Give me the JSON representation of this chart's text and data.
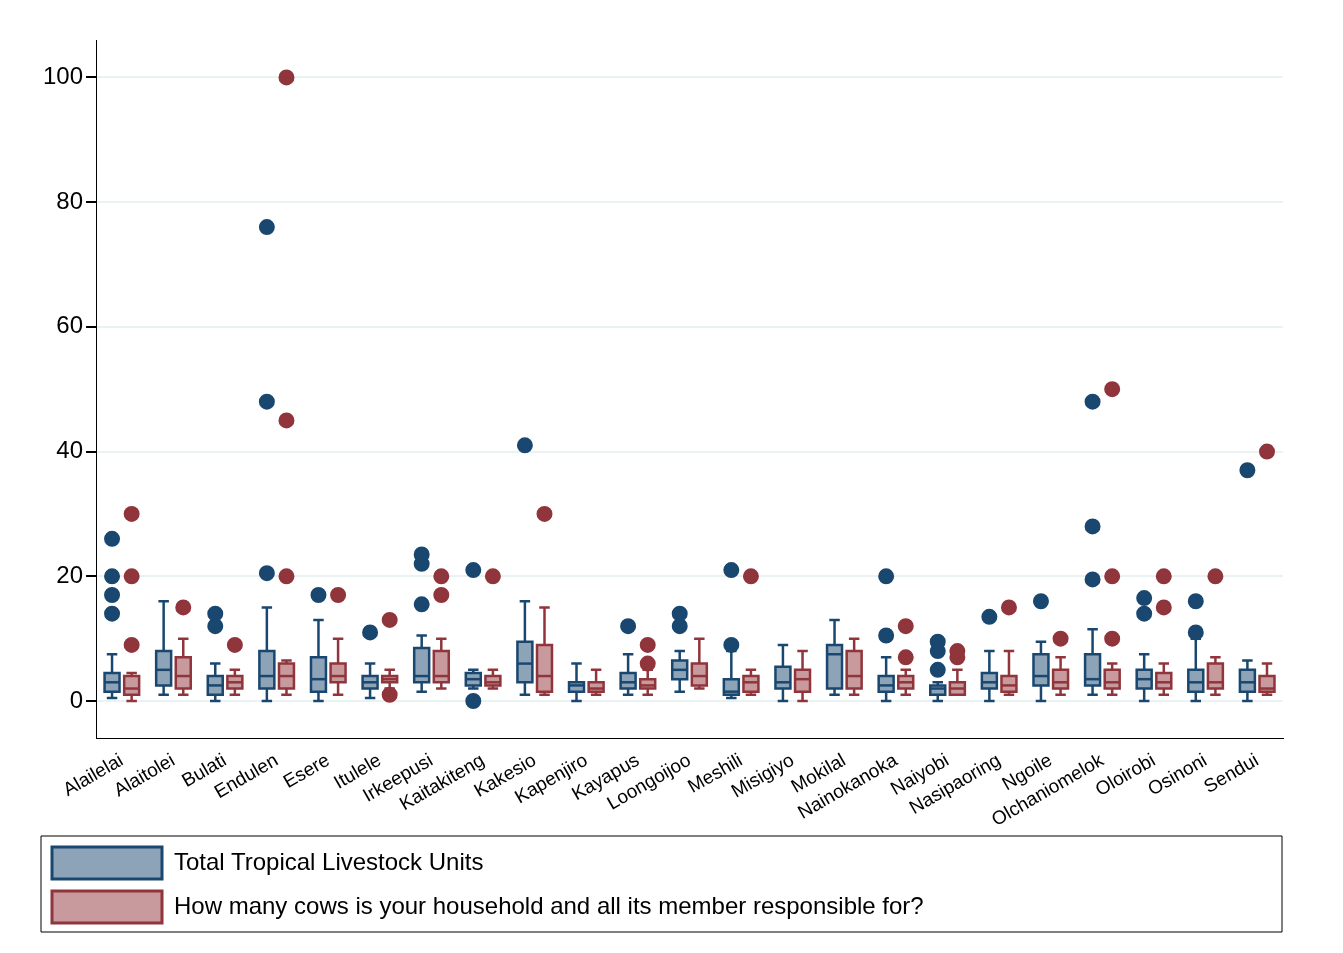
{
  "chart_data": {
    "type": "box",
    "categories": [
      "Alailelai",
      "Alaitolei",
      "Bulati",
      "Endulen",
      "Esere",
      "Itulele",
      "Irkeepusi",
      "Kaitakiteng",
      "Kakesio",
      "Kapenjiro",
      "Kayapus",
      "Loongoijoo",
      "Meshili",
      "Misigiyo",
      "Mokilal",
      "Nainokanoka",
      "Naiyobi",
      "Nasipaoring",
      "Ngoile",
      "Olchaniomelok",
      "Oloirobi",
      "Osinoni",
      "Sendui"
    ],
    "ylim": [
      -6,
      106
    ],
    "yticks": [
      0,
      20,
      40,
      60,
      80,
      100
    ],
    "grid": "y",
    "legend": "bottom",
    "marker": "circle",
    "series": [
      {
        "name": "Total Tropical Livestock Units",
        "color": "#1a476f",
        "boxes": [
          {
            "low": 0.5,
            "q1": 1.5,
            "median": 3,
            "q3": 4.5,
            "high": 7.5,
            "outliers": [
              14,
              17,
              20,
              26
            ]
          },
          {
            "low": 1,
            "q1": 2.5,
            "median": 5,
            "q3": 8,
            "high": 16
          },
          {
            "low": 0,
            "q1": 1,
            "median": 2.5,
            "q3": 4,
            "high": 6,
            "outliers": [
              12,
              14
            ]
          },
          {
            "low": 0,
            "q1": 2,
            "median": 4,
            "q3": 8,
            "high": 15,
            "outliers": [
              20.5,
              48,
              76
            ]
          },
          {
            "low": 0,
            "q1": 1.5,
            "median": 3.5,
            "q3": 7,
            "high": 13,
            "outliers": [
              17
            ]
          },
          {
            "low": 0.5,
            "q1": 2,
            "median": 3,
            "q3": 4,
            "high": 6,
            "outliers": [
              11
            ]
          },
          {
            "low": 1.5,
            "q1": 3,
            "median": 4,
            "q3": 8.5,
            "high": 10.5,
            "outliers": [
              15.5,
              22,
              23.5
            ]
          },
          {
            "low": 2,
            "q1": 2.5,
            "median": 3.5,
            "q3": 4.5,
            "high": 5,
            "outliers": [
              0,
              21
            ]
          },
          {
            "low": 1,
            "q1": 3,
            "median": 6,
            "q3": 9.5,
            "high": 16,
            "outliers": [
              41
            ]
          },
          {
            "low": 0,
            "q1": 1.5,
            "median": 2.5,
            "q3": 3,
            "high": 6
          },
          {
            "low": 1,
            "q1": 2,
            "median": 3,
            "q3": 4.5,
            "high": 7.5,
            "outliers": [
              12
            ]
          },
          {
            "low": 1.5,
            "q1": 3.5,
            "median": 5,
            "q3": 6.5,
            "high": 8,
            "outliers": [
              12,
              14
            ]
          },
          {
            "low": 0.5,
            "q1": 1,
            "median": 1.5,
            "q3": 3.5,
            "high": 8,
            "outliers": [
              9,
              21
            ]
          },
          {
            "low": 0,
            "q1": 2,
            "median": 3,
            "q3": 5.5,
            "high": 9
          },
          {
            "low": 1,
            "q1": 2,
            "median": 7.5,
            "q3": 9,
            "high": 13
          },
          {
            "low": 0,
            "q1": 1.5,
            "median": 2.5,
            "q3": 4,
            "high": 7,
            "outliers": [
              10.5,
              20
            ]
          },
          {
            "low": 0,
            "q1": 1,
            "median": 2,
            "q3": 2.5,
            "high": 3,
            "outliers": [
              5,
              8,
              9.5
            ]
          },
          {
            "low": 0,
            "q1": 2,
            "median": 3,
            "q3": 4.5,
            "high": 8,
            "outliers": [
              13.5
            ]
          },
          {
            "low": 0,
            "q1": 2.5,
            "median": 4,
            "q3": 7.5,
            "high": 9.5,
            "outliers": [
              16
            ]
          },
          {
            "low": 1,
            "q1": 2.5,
            "median": 3.5,
            "q3": 7.5,
            "high": 11.5,
            "outliers": [
              19.5,
              28,
              48
            ]
          },
          {
            "low": 0,
            "q1": 2,
            "median": 3.5,
            "q3": 5,
            "high": 7.5,
            "outliers": [
              14,
              16.5
            ]
          },
          {
            "low": 0,
            "q1": 1.5,
            "median": 3,
            "q3": 5,
            "high": 10,
            "outliers": [
              11,
              16
            ]
          },
          {
            "low": 0,
            "q1": 1.5,
            "median": 3,
            "q3": 5,
            "high": 6.5,
            "outliers": [
              37
            ]
          }
        ]
      },
      {
        "name": "How many cows is your household and all its member responsible for?",
        "color": "#90353b",
        "boxes": [
          {
            "low": 0,
            "q1": 1,
            "median": 2,
            "q3": 4,
            "high": 4.5,
            "outliers": [
              9,
              20,
              30
            ]
          },
          {
            "low": 1,
            "q1": 2,
            "median": 4,
            "q3": 7,
            "high": 10,
            "outliers": [
              15
            ]
          },
          {
            "low": 1,
            "q1": 2,
            "median": 3,
            "q3": 4,
            "high": 5,
            "outliers": [
              9
            ]
          },
          {
            "low": 1,
            "q1": 2,
            "median": 4,
            "q3": 6,
            "high": 6.5,
            "outliers": [
              20,
              45,
              100
            ]
          },
          {
            "low": 1,
            "q1": 3,
            "median": 4,
            "q3": 6,
            "high": 10,
            "outliers": [
              17
            ]
          },
          {
            "low": 2,
            "q1": 3,
            "median": 3.5,
            "q3": 4,
            "high": 5,
            "outliers": [
              1,
              13
            ]
          },
          {
            "low": 2,
            "q1": 3,
            "median": 4,
            "q3": 8,
            "high": 10,
            "outliers": [
              17,
              20
            ]
          },
          {
            "low": 2,
            "q1": 2.5,
            "median": 3,
            "q3": 4,
            "high": 5,
            "outliers": [
              20
            ]
          },
          {
            "low": 1,
            "q1": 1.5,
            "median": 4,
            "q3": 9,
            "high": 15,
            "outliers": [
              30
            ]
          },
          {
            "low": 1,
            "q1": 1.5,
            "median": 2,
            "q3": 3,
            "high": 5
          },
          {
            "low": 1,
            "q1": 2,
            "median": 2.5,
            "q3": 3.5,
            "high": 5,
            "outliers": [
              6,
              9
            ]
          },
          {
            "low": 2,
            "q1": 2.5,
            "median": 4,
            "q3": 6,
            "high": 10
          },
          {
            "low": 1,
            "q1": 1.5,
            "median": 3,
            "q3": 4,
            "high": 5,
            "outliers": [
              20
            ]
          },
          {
            "low": 0,
            "q1": 1.5,
            "median": 3.5,
            "q3": 5,
            "high": 8
          },
          {
            "low": 1,
            "q1": 2,
            "median": 4,
            "q3": 8,
            "high": 10
          },
          {
            "low": 1,
            "q1": 2,
            "median": 3,
            "q3": 4,
            "high": 5,
            "outliers": [
              7,
              12
            ]
          },
          {
            "low": 1,
            "q1": 1,
            "median": 2,
            "q3": 3,
            "high": 5,
            "outliers": [
              7,
              8
            ]
          },
          {
            "low": 1,
            "q1": 1.5,
            "median": 2.5,
            "q3": 4,
            "high": 8,
            "outliers": [
              15
            ]
          },
          {
            "low": 1,
            "q1": 2,
            "median": 3,
            "q3": 5,
            "high": 7,
            "outliers": [
              10
            ]
          },
          {
            "low": 1,
            "q1": 2,
            "median": 3,
            "q3": 5,
            "high": 6,
            "outliers": [
              10,
              20,
              50
            ]
          },
          {
            "low": 1,
            "q1": 2,
            "median": 3,
            "q3": 4.5,
            "high": 6,
            "outliers": [
              15,
              20
            ]
          },
          {
            "low": 1,
            "q1": 2,
            "median": 3,
            "q3": 6,
            "high": 7,
            "outliers": [
              20
            ]
          },
          {
            "low": 1,
            "q1": 1.5,
            "median": 2,
            "q3": 4,
            "high": 6,
            "outliers": [
              40
            ]
          }
        ]
      }
    ]
  }
}
